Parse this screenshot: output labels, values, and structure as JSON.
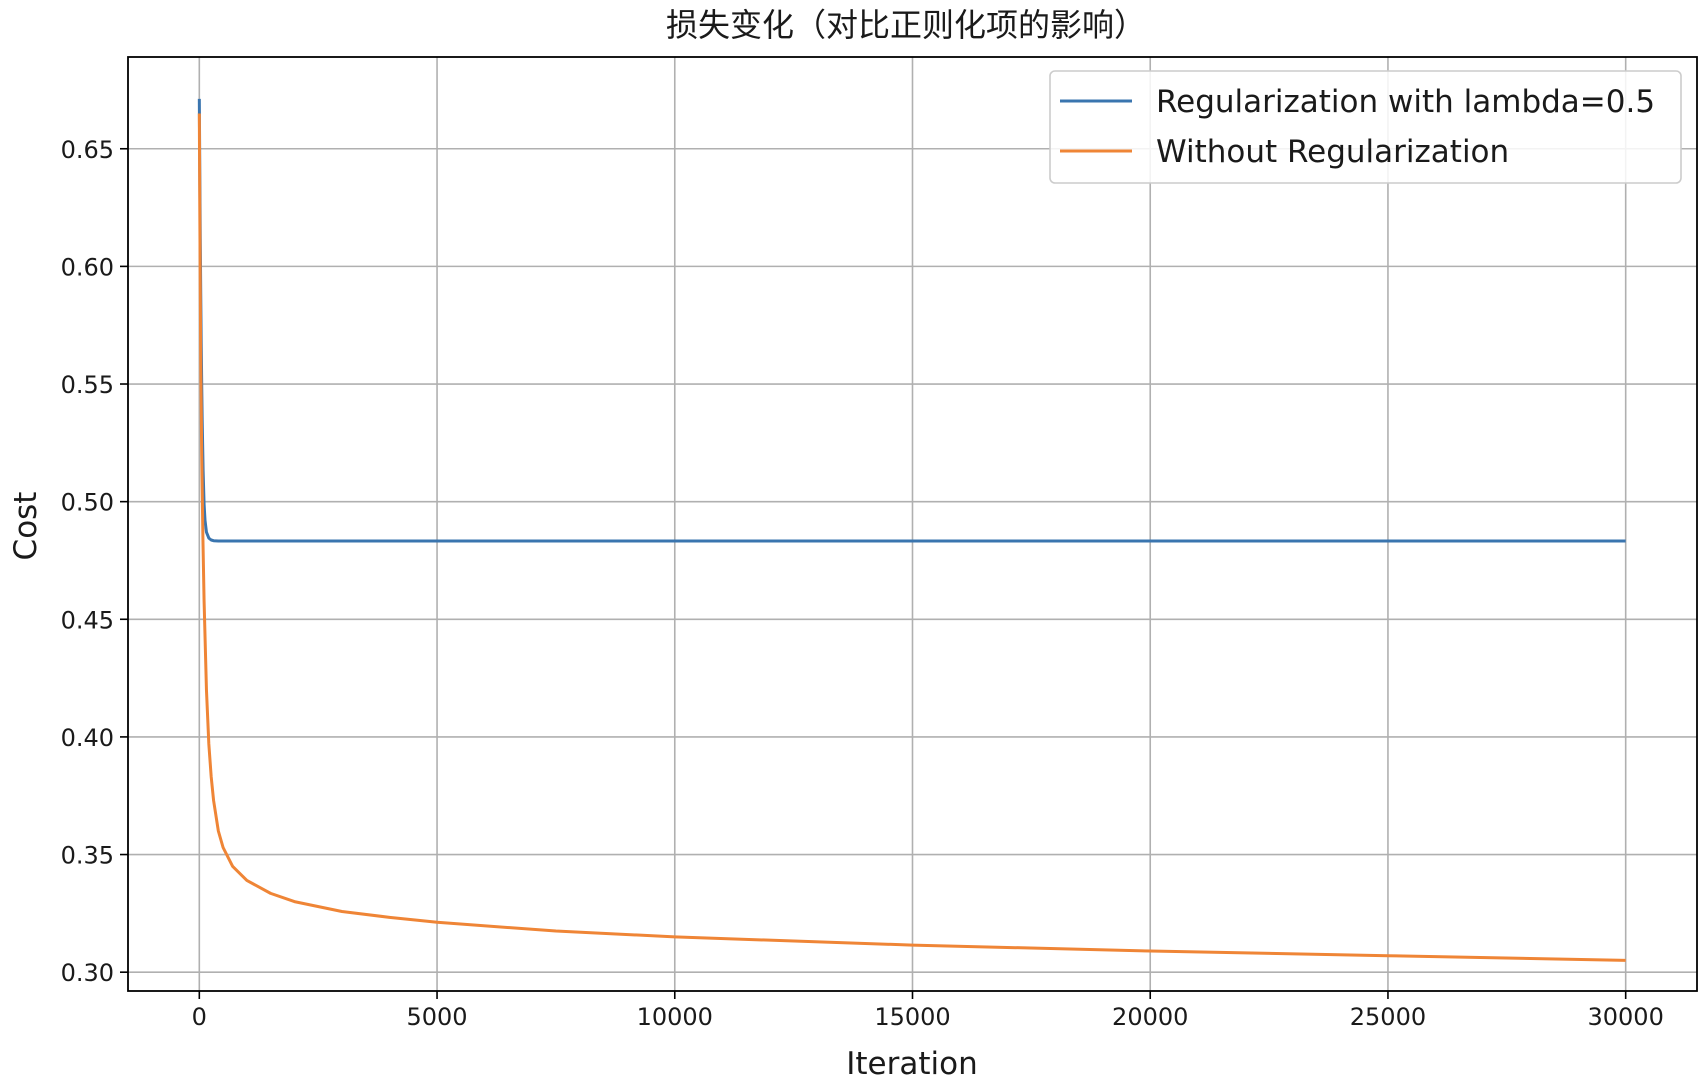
{
  "chart_data": {
    "type": "line",
    "title": "损失变化（对比正则化项的影响）",
    "xlabel": "Iteration",
    "ylabel": "Cost",
    "xlim": [
      -1500,
      31500
    ],
    "ylim": [
      0.292,
      0.689
    ],
    "xticks": [
      0,
      5000,
      10000,
      15000,
      20000,
      25000,
      30000
    ],
    "xtick_labels": [
      "0",
      "5000",
      "10000",
      "15000",
      "20000",
      "25000",
      "30000"
    ],
    "yticks": [
      0.3,
      0.35,
      0.4,
      0.45,
      0.5,
      0.55,
      0.6,
      0.65
    ],
    "ytick_labels": [
      "0.30",
      "0.35",
      "0.40",
      "0.45",
      "0.50",
      "0.55",
      "0.60",
      "0.65"
    ],
    "grid": true,
    "legend_position": "top-right",
    "series": [
      {
        "name": "Regularization with lambda=0.5",
        "color": "#3a75af",
        "x": [
          0,
          5,
          10,
          20,
          30,
          40,
          50,
          60,
          80,
          100,
          120,
          150,
          200,
          250,
          300,
          400,
          500,
          700,
          1000,
          2000,
          5000,
          10000,
          15000,
          20000,
          25000,
          30000
        ],
        "y": [
          0.6712,
          0.655,
          0.64,
          0.612,
          0.588,
          0.567,
          0.55,
          0.535,
          0.513,
          0.499,
          0.492,
          0.487,
          0.4845,
          0.4837,
          0.4834,
          0.4833,
          0.4833,
          0.4833,
          0.4833,
          0.4833,
          0.4833,
          0.4833,
          0.4833,
          0.4833,
          0.4833,
          0.4833
        ]
      },
      {
        "name": "Without Regularization",
        "color": "#ef8536",
        "x": [
          0,
          5,
          10,
          20,
          30,
          50,
          75,
          100,
          150,
          200,
          250,
          300,
          400,
          500,
          700,
          1000,
          1500,
          2000,
          3000,
          4000,
          5000,
          7500,
          10000,
          15000,
          20000,
          25000,
          30000
        ],
        "y": [
          0.665,
          0.645,
          0.625,
          0.59,
          0.56,
          0.52,
          0.485,
          0.458,
          0.42,
          0.397,
          0.383,
          0.373,
          0.36,
          0.353,
          0.345,
          0.339,
          0.3335,
          0.33,
          0.3258,
          0.3233,
          0.3212,
          0.3175,
          0.315,
          0.3115,
          0.309,
          0.307,
          0.305
        ]
      }
    ]
  }
}
